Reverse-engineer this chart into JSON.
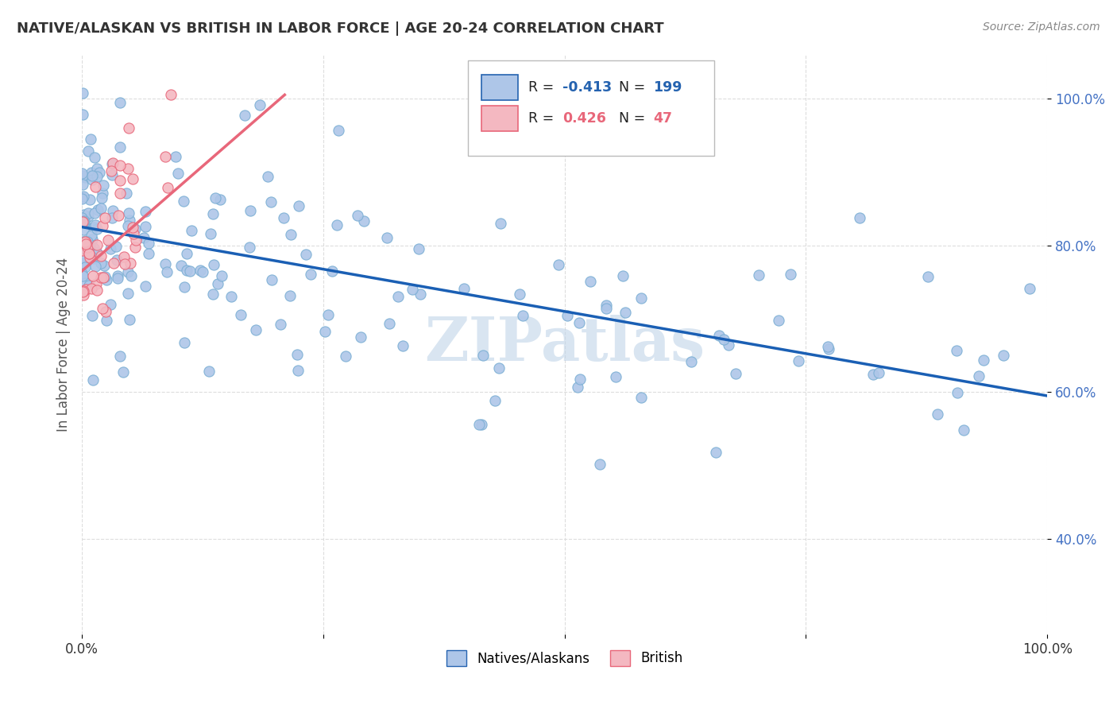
{
  "title": "NATIVE/ALASKAN VS BRITISH IN LABOR FORCE | AGE 20-24 CORRELATION CHART",
  "source": "Source: ZipAtlas.com",
  "ylabel": "In Labor Force | Age 20-24",
  "watermark": "ZIPatlas",
  "legend_entries": [
    {
      "label": "Natives/Alaskans",
      "color": "#aec6e8",
      "R": "-0.413",
      "N": "199",
      "line_color": "#2563b0",
      "r_val": -0.413,
      "n_val": 199
    },
    {
      "label": "British",
      "color": "#f4b8c1",
      "R": "0.426",
      "N": "47",
      "line_color": "#e8677a",
      "r_val": 0.426,
      "n_val": 47
    }
  ],
  "blue_line": {
    "x_start": 0.0,
    "y_start": 0.825,
    "x_end": 1.0,
    "y_end": 0.595,
    "color": "#1a5fb4"
  },
  "pink_line": {
    "x_start": 0.0,
    "y_start": 0.765,
    "x_end": 0.21,
    "y_end": 1.005,
    "color": "#e8677a"
  },
  "xlim": [
    0.0,
    1.0
  ],
  "ylim": [
    0.27,
    1.06
  ],
  "background_color": "#ffffff",
  "grid_color": "#dddddd",
  "title_fontsize": 13,
  "source_fontsize": 10,
  "watermark_color": "#c0d4e8",
  "watermark_fontsize": 55,
  "blue_scatter_color": "#aec6e8",
  "blue_edge_color": "#7bafd4",
  "pink_scatter_color": "#f4b8c1",
  "pink_edge_color": "#e8677a",
  "seed": 42
}
